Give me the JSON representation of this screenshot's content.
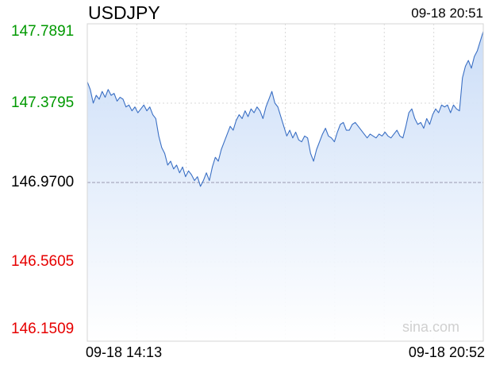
{
  "header": {
    "symbol": "USDJPY",
    "timestamp": "09-18 20:51"
  },
  "watermark": "sina.com",
  "colors": {
    "line": "#3a6fc4",
    "fill_top": "#c9dcf7",
    "fill_bottom": "#ffffff",
    "grid": "#d9d9d9",
    "up": "#009900",
    "down": "#e60000",
    "neutral": "#000000"
  },
  "chart_data": {
    "type": "area",
    "title": "USDJPY",
    "xlabel": "",
    "ylabel": "",
    "ylim": [
      146.1509,
      147.7891
    ],
    "reference_price": 146.97,
    "y_ticks": [
      {
        "value": 147.7891,
        "label": "147.7891",
        "tone": "up"
      },
      {
        "value": 147.3795,
        "label": "147.3795",
        "tone": "up"
      },
      {
        "value": 146.97,
        "label": "146.9700",
        "tone": "neutral"
      },
      {
        "value": 146.5605,
        "label": "146.5605",
        "tone": "down"
      },
      {
        "value": 146.1509,
        "label": "146.1509",
        "tone": "down"
      }
    ],
    "x_ticks": [
      {
        "label": "09-18 14:13",
        "align": "start"
      },
      {
        "label": "09-18 20:52",
        "align": "end"
      }
    ],
    "grid": true,
    "series": [
      {
        "values": [
          147.49,
          147.45,
          147.38,
          147.42,
          147.4,
          147.44,
          147.41,
          147.45,
          147.42,
          147.43,
          147.39,
          147.41,
          147.4,
          147.36,
          147.37,
          147.34,
          147.36,
          147.33,
          147.35,
          147.37,
          147.34,
          147.36,
          147.32,
          147.3,
          147.21,
          147.15,
          147.12,
          147.06,
          147.08,
          147.04,
          147.06,
          147.02,
          147.05,
          147.0,
          147.03,
          147.01,
          146.98,
          147.0,
          146.95,
          146.98,
          147.02,
          146.98,
          147.05,
          147.1,
          147.08,
          147.14,
          147.18,
          147.22,
          147.26,
          147.24,
          147.29,
          147.32,
          147.3,
          147.34,
          147.31,
          147.35,
          147.33,
          147.36,
          147.34,
          147.3,
          147.36,
          147.4,
          147.44,
          147.38,
          147.36,
          147.31,
          147.26,
          147.21,
          147.24,
          147.2,
          147.23,
          147.19,
          147.18,
          147.21,
          147.2,
          147.12,
          147.08,
          147.14,
          147.18,
          147.22,
          147.25,
          147.21,
          147.2,
          147.18,
          147.23,
          147.27,
          147.28,
          147.24,
          147.24,
          147.27,
          147.28,
          147.26,
          147.24,
          147.22,
          147.2,
          147.22,
          147.21,
          147.2,
          147.22,
          147.21,
          147.23,
          147.21,
          147.2,
          147.22,
          147.24,
          147.21,
          147.2,
          147.26,
          147.33,
          147.35,
          147.3,
          147.27,
          147.28,
          147.25,
          147.3,
          147.27,
          147.32,
          147.35,
          147.33,
          147.37,
          147.36,
          147.37,
          147.33,
          147.37,
          147.35,
          147.34,
          147.51,
          147.57,
          147.6,
          147.56,
          147.62,
          147.65,
          147.7,
          147.75
        ]
      }
    ]
  }
}
